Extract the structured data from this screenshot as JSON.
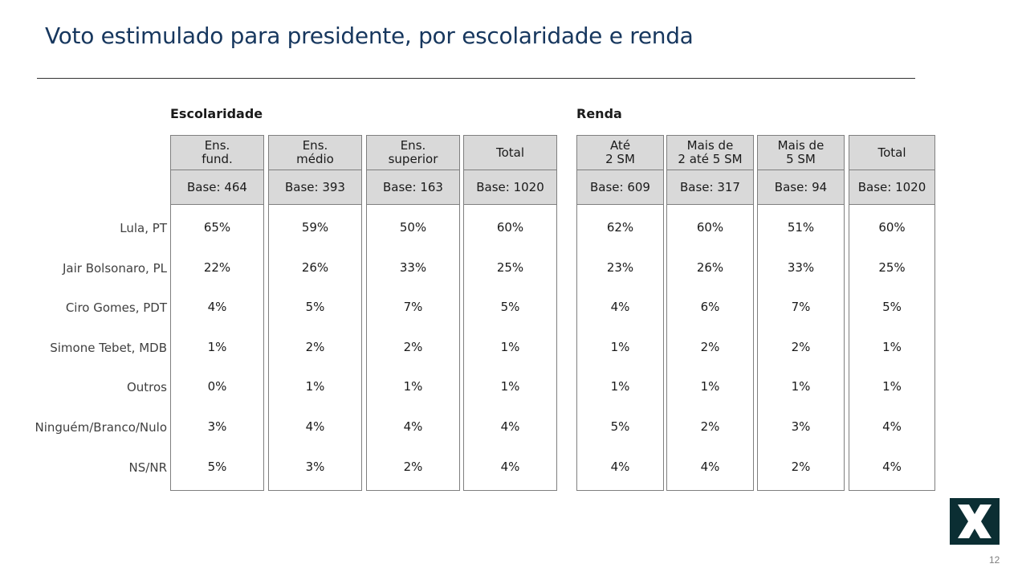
{
  "title": "Voto estimulado para presidente, por escolaridade e renda",
  "sections": {
    "escolaridade": "Escolaridade",
    "renda": "Renda"
  },
  "rows": [
    "Lula, PT",
    "Jair Bolsonaro, PL",
    "Ciro Gomes, PDT",
    "Simone Tebet, MDB",
    "Outros",
    "Ninguém/Branco/Nulo",
    "NS/NR"
  ],
  "columns": [
    {
      "header": "Ens.\nfund.",
      "base": "Base: 464",
      "values": [
        "65%",
        "22%",
        "4%",
        "1%",
        "0%",
        "3%",
        "5%"
      ]
    },
    {
      "header": "Ens.\nmédio",
      "base": "Base: 393",
      "values": [
        "59%",
        "26%",
        "5%",
        "2%",
        "1%",
        "4%",
        "3%"
      ]
    },
    {
      "header": "Ens.\nsuperior",
      "base": "Base: 163",
      "values": [
        "50%",
        "33%",
        "7%",
        "2%",
        "1%",
        "4%",
        "2%"
      ]
    },
    {
      "header": "Total",
      "base": "Base: 1020",
      "values": [
        "60%",
        "25%",
        "5%",
        "1%",
        "1%",
        "4%",
        "4%"
      ]
    },
    {
      "header": "Até\n2 SM",
      "base": "Base: 609",
      "values": [
        "62%",
        "23%",
        "4%",
        "1%",
        "1%",
        "5%",
        "4%"
      ]
    },
    {
      "header": "Mais de\n2 até 5 SM",
      "base": "Base: 317",
      "values": [
        "60%",
        "26%",
        "6%",
        "2%",
        "1%",
        "2%",
        "4%"
      ]
    },
    {
      "header": "Mais de\n5 SM",
      "base": "Base: 94",
      "values": [
        "51%",
        "33%",
        "7%",
        "2%",
        "1%",
        "3%",
        "2%"
      ]
    },
    {
      "header": "Total",
      "base": "Base: 1020",
      "values": [
        "60%",
        "25%",
        "5%",
        "1%",
        "1%",
        "4%",
        "4%"
      ]
    }
  ],
  "logo": {
    "icon": "x-logo-icon",
    "color": "#0b2e33"
  },
  "page_number": "12"
}
